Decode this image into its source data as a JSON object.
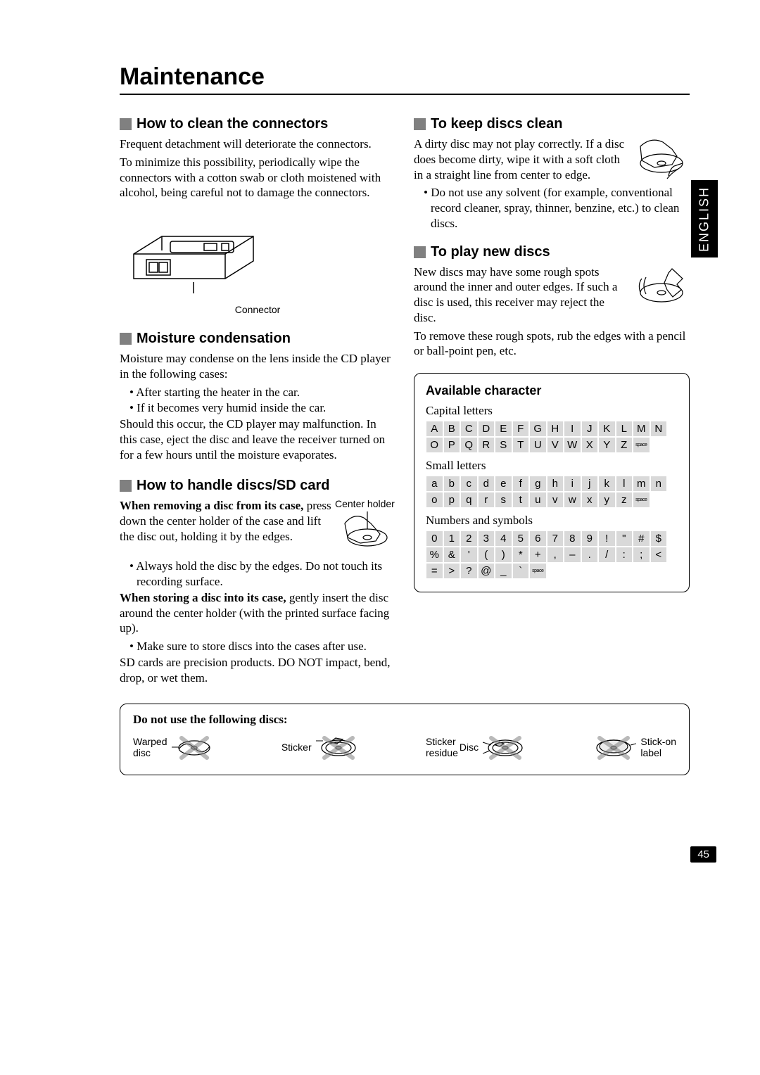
{
  "page_title": "Maintenance",
  "language_tab": "ENGLISH",
  "page_number": "45",
  "left": {
    "s1": {
      "heading": "How to clean the connectors",
      "p1": "Frequent detachment will deteriorate the connectors.",
      "p2": "To minimize this possibility, periodically wipe the connectors with a cotton swab or cloth moistened with alcohol, being careful not to damage the connectors.",
      "caption": "Connector"
    },
    "s2": {
      "heading": "Moisture condensation",
      "p1": "Moisture may condense on the lens inside the CD player in the following cases:",
      "b1": "After starting the heater in the car.",
      "b2": "If it becomes very humid inside the car.",
      "p2": "Should this occur, the CD player may malfunction. In this case, eject the disc and leave the receiver turned on for a few hours until the moisture evaporates."
    },
    "s3": {
      "heading": "How to handle discs/SD card",
      "p1a": "When removing a disc from its case,",
      "p1b": " press down the center holder of the case and lift the disc out, holding it by the edges.",
      "center_label": "Center holder",
      "b1": "Always hold the disc by the edges. Do not touch its recording surface.",
      "p2a": "When storing a disc into its case,",
      "p2b": " gently insert the disc around the center holder (with the printed surface facing up).",
      "b2": "Make sure to store discs into the cases after use.",
      "p3": "SD cards are precision products. DO NOT impact, bend, drop, or wet them."
    }
  },
  "right": {
    "s4": {
      "heading": "To keep discs clean",
      "p1": "A dirty disc may not play correctly. If a disc does become dirty, wipe it with a soft cloth in a straight line from center to edge.",
      "b1": "Do not use any solvent (for example, conventional record cleaner, spray, thinner, benzine, etc.) to clean discs."
    },
    "s5": {
      "heading": "To play new discs",
      "p1": "New discs may have some rough spots around the inner and outer edges. If such a disc is used, this receiver may reject the disc.",
      "p2": "To remove these rough spots, rub the edges with a pencil or ball-point pen, etc."
    }
  },
  "chars": {
    "title": "Available character",
    "capital_label": "Capital letters",
    "small_label": "Small letters",
    "symbols_label": "Numbers and symbols",
    "capital": [
      "A",
      "B",
      "C",
      "D",
      "E",
      "F",
      "G",
      "H",
      "I",
      "J",
      "K",
      "L",
      "M",
      "N",
      "O",
      "P",
      "Q",
      "R",
      "S",
      "T",
      "U",
      "V",
      "W",
      "X",
      "Y",
      "Z",
      "space"
    ],
    "small": [
      "a",
      "b",
      "c",
      "d",
      "e",
      "f",
      "g",
      "h",
      "i",
      "j",
      "k",
      "l",
      "m",
      "n",
      "o",
      "p",
      "q",
      "r",
      "s",
      "t",
      "u",
      "v",
      "w",
      "x",
      "y",
      "z",
      "space"
    ],
    "symbols": [
      "0",
      "1",
      "2",
      "3",
      "4",
      "5",
      "6",
      "7",
      "8",
      "9",
      "!",
      "\"",
      "#",
      "$",
      "%",
      "&",
      "'",
      "(",
      ")",
      "*",
      "+",
      ",",
      "–",
      ".",
      "/",
      ":",
      ";",
      "<",
      "=",
      ">",
      "?",
      "@",
      "_",
      "`",
      "space"
    ]
  },
  "forbidden": {
    "title": "Do not use the following discs:",
    "labels": {
      "warped": "Warped\ndisc",
      "sticker": "Sticker",
      "residue": "Sticker\nresidue",
      "disc": "Disc",
      "stickon": "Stick-on\nlabel"
    }
  },
  "style": {
    "gray": "#808080",
    "cell_bg": "#d9d9d9"
  }
}
